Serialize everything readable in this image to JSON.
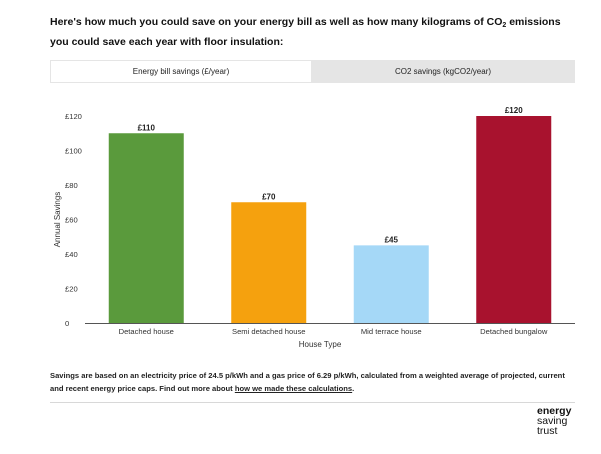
{
  "intro": {
    "text_part1": "Here's how much you could save on your energy bill as well as how many kilograms of CO",
    "text_sub": "2",
    "text_part2": " emissions you could save each year with floor insulation:"
  },
  "tabs": [
    {
      "label": "Energy bill savings (£/year)",
      "active": true
    },
    {
      "label": "CO2 savings (kgCO2/year)",
      "active": false
    }
  ],
  "chart_data": {
    "type": "bar",
    "categories": [
      "Detached house",
      "Semi detached house",
      "Mid terrace house",
      "Detached bungalow"
    ],
    "values": [
      110,
      70,
      45,
      120
    ],
    "data_labels": [
      "£110",
      "£70",
      "£45",
      "£120"
    ],
    "colors": [
      "#5a9a3c",
      "#f5a10e",
      "#a5d8f7",
      "#a8122e"
    ],
    "xlabel": "House Type",
    "ylabel": "Annual Savings",
    "ylim": [
      0,
      120
    ],
    "yticks": [
      0,
      20,
      40,
      60,
      80,
      100,
      120
    ],
    "ytick_labels": [
      "0",
      "£20",
      "£40",
      "£60",
      "£80",
      "£100",
      "£120"
    ],
    "grid": false
  },
  "footnote": {
    "text": "Savings are based on an electricity price of 24.5 p/kWh and a gas price of 6.29 p/kWh, calculated from a weighted average of projected, current and recent energy price caps. Find out more about ",
    "link_text": "how we made these calculations",
    "end": "."
  },
  "logo": {
    "line1": "energy",
    "line2": "saving",
    "line3": "trust"
  }
}
